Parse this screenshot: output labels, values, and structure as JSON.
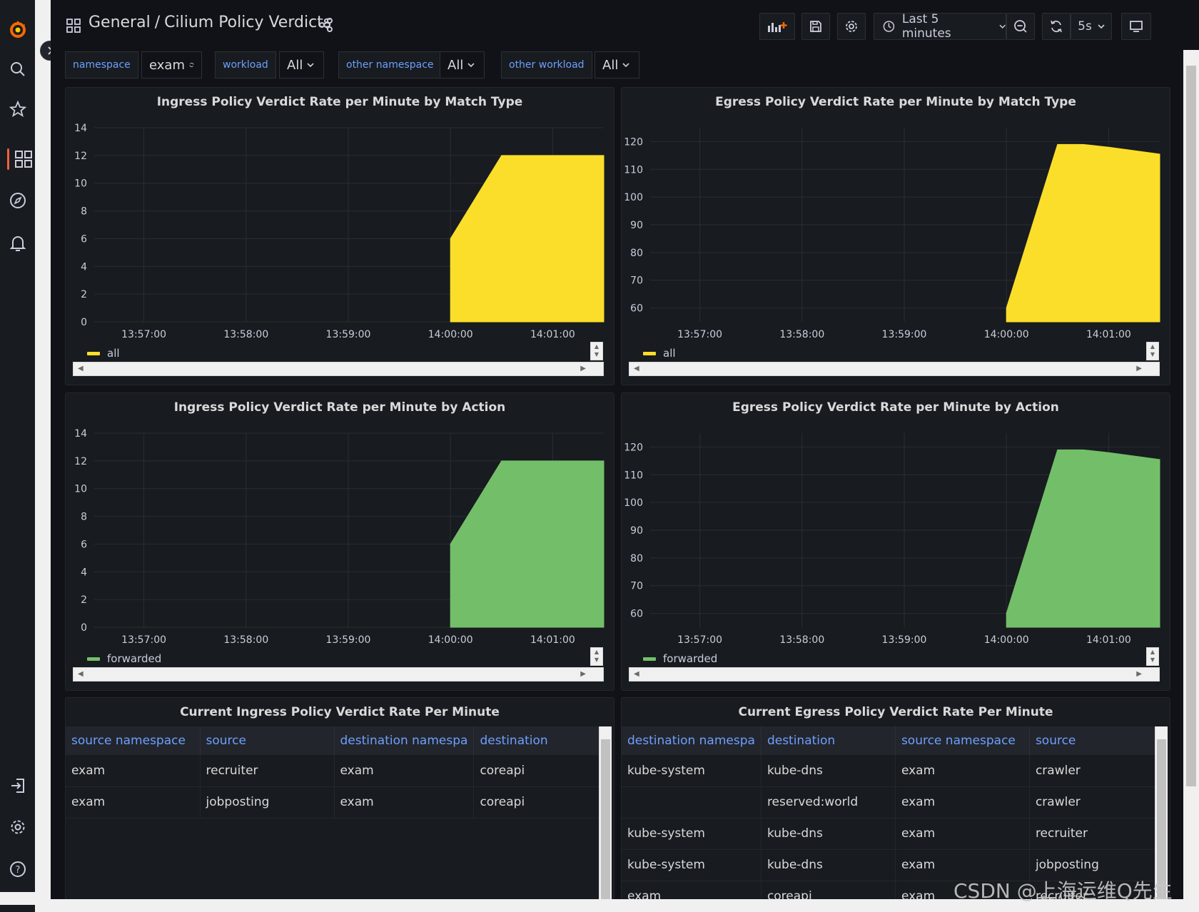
{
  "breadcrumb": {
    "folder": "General",
    "separator": "/",
    "dashboard": "Cilium Policy Verdicts"
  },
  "toolbar": {
    "time_range": "Last 5 minutes",
    "refresh_interval": "5s"
  },
  "variables": [
    {
      "label": "namespace",
      "value": "exam"
    },
    {
      "label": "workload",
      "value": "All"
    },
    {
      "label": "other namespace",
      "value": "All"
    },
    {
      "label": "other workload",
      "value": "All"
    }
  ],
  "colors": {
    "yellow": "#fade2a",
    "green": "#73bf69",
    "link_blue": "#6e9fff",
    "logo": "#f46800"
  },
  "panels": {
    "ingress_match": {
      "title": "Ingress Policy Verdict Rate per Minute by Match Type",
      "legend": "all",
      "y_ticks": [
        "14",
        "12",
        "10",
        "8",
        "6",
        "4",
        "2",
        "0"
      ],
      "x_ticks": [
        "13:57:00",
        "13:58:00",
        "13:59:00",
        "14:00:00",
        "14:01:00"
      ]
    },
    "egress_match": {
      "title": "Egress Policy Verdict Rate per Minute by Match Type",
      "legend": "all",
      "y_ticks": [
        "120",
        "110",
        "100",
        "90",
        "80",
        "70",
        "60"
      ],
      "x_ticks": [
        "13:57:00",
        "13:58:00",
        "13:59:00",
        "14:00:00",
        "14:01:00"
      ]
    },
    "ingress_action": {
      "title": "Ingress Policy Verdict Rate per Minute by Action",
      "legend": "forwarded",
      "y_ticks": [
        "14",
        "12",
        "10",
        "8",
        "6",
        "4",
        "2",
        "0"
      ],
      "x_ticks": [
        "13:57:00",
        "13:58:00",
        "13:59:00",
        "14:00:00",
        "14:01:00"
      ]
    },
    "egress_action": {
      "title": "Egress Policy Verdict Rate per Minute by Action",
      "legend": "forwarded",
      "y_ticks": [
        "120",
        "110",
        "100",
        "90",
        "80",
        "70",
        "60"
      ],
      "x_ticks": [
        "13:57:00",
        "13:58:00",
        "13:59:00",
        "14:00:00",
        "14:01:00"
      ]
    },
    "ingress_table": {
      "title": "Current Ingress Policy Verdict Rate Per Minute",
      "columns": [
        "source namespace",
        "source",
        "destination namespa",
        "destination"
      ],
      "rows": [
        [
          "exam",
          "recruiter",
          "exam",
          "coreapi"
        ],
        [
          "exam",
          "jobposting",
          "exam",
          "coreapi"
        ]
      ]
    },
    "egress_table": {
      "title": "Current Egress Policy Verdict Rate Per Minute",
      "columns": [
        "destination namespa",
        "destination",
        "source namespace",
        "source"
      ],
      "rows": [
        [
          "kube-system",
          "kube-dns",
          "exam",
          "crawler"
        ],
        [
          "",
          "reserved:world",
          "exam",
          "crawler"
        ],
        [
          "kube-system",
          "kube-dns",
          "exam",
          "recruiter"
        ],
        [
          "kube-system",
          "kube-dns",
          "exam",
          "jobposting"
        ],
        [
          "exam",
          "coreapi",
          "exam",
          "recruiter"
        ]
      ]
    }
  },
  "chart_data": [
    {
      "type": "area",
      "title": "Ingress Policy Verdict Rate per Minute by Match Type",
      "x": [
        "14:00:00",
        "14:00:30",
        "14:01:00",
        "14:01:30"
      ],
      "series": [
        {
          "name": "all",
          "values": [
            6,
            12,
            12,
            12
          ]
        }
      ],
      "ylim": [
        0,
        14
      ],
      "xlim": [
        "13:56:30",
        "14:01:30"
      ]
    },
    {
      "type": "area",
      "title": "Egress Policy Verdict Rate per Minute by Match Type",
      "x": [
        "14:00:00",
        "14:00:30",
        "14:00:45",
        "14:01:00",
        "14:01:30"
      ],
      "series": [
        {
          "name": "all",
          "values": [
            60,
            119,
            119,
            118,
            115.5
          ]
        }
      ],
      "ylim": [
        55,
        125
      ],
      "xlim": [
        "13:56:30",
        "14:01:30"
      ]
    },
    {
      "type": "area",
      "title": "Ingress Policy Verdict Rate per Minute by Action",
      "x": [
        "14:00:00",
        "14:00:30",
        "14:01:00",
        "14:01:30"
      ],
      "series": [
        {
          "name": "forwarded",
          "values": [
            6,
            12,
            12,
            12
          ]
        }
      ],
      "ylim": [
        0,
        14
      ],
      "xlim": [
        "13:56:30",
        "14:01:30"
      ]
    },
    {
      "type": "area",
      "title": "Egress Policy Verdict Rate per Minute by Action",
      "x": [
        "14:00:00",
        "14:00:30",
        "14:00:45",
        "14:01:00",
        "14:01:30"
      ],
      "series": [
        {
          "name": "forwarded",
          "values": [
            60,
            119,
            119,
            118,
            115.5
          ]
        }
      ],
      "ylim": [
        55,
        125
      ],
      "xlim": [
        "13:56:30",
        "14:01:30"
      ]
    }
  ],
  "watermark": "CSDN @上海运维Q先生"
}
